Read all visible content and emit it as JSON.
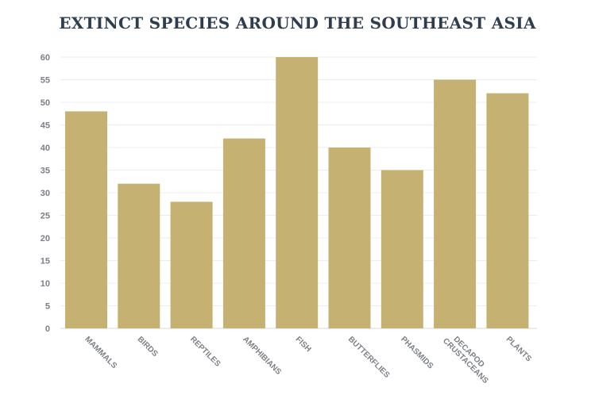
{
  "chart_data": {
    "type": "bar",
    "title": "EXTINCT SPECIES AROUND THE SOUTHEAST ASIA",
    "xlabel": "",
    "ylabel": "",
    "categories": [
      "MAMMALS",
      "BIRDS",
      "REPTILES",
      "AMPHIBIANS",
      "FISH",
      "BUTTERFLIES",
      "PHASMIDS",
      "DECAPOD CRUSTACEANS",
      "PLANTS"
    ],
    "values": [
      48,
      32,
      28,
      42,
      60,
      40,
      35,
      55,
      52
    ],
    "ylim": [
      0,
      60
    ],
    "yticks": [
      "0",
      "5",
      "10",
      "15",
      "20",
      "25",
      "30",
      "35",
      "40",
      "45",
      "50",
      "55",
      "60"
    ],
    "grid": true,
    "colors": {
      "bar": "#c5b171",
      "grid": "#ececec",
      "tick_text": "#7b7f86",
      "title": "#2f3e4e"
    }
  }
}
